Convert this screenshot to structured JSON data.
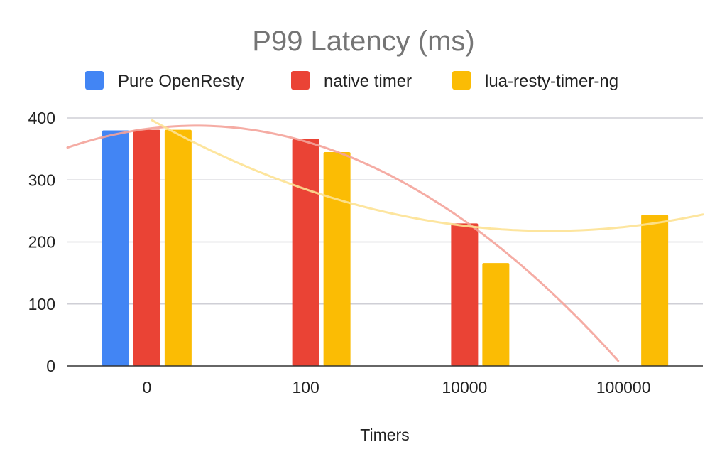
{
  "chart_data": {
    "type": "bar",
    "title": "P99 Latency (ms)",
    "xlabel": "Timers",
    "ylabel": "",
    "categories": [
      "0",
      "100",
      "10000",
      "100000"
    ],
    "ylim": [
      0,
      400
    ],
    "yticks": [
      "0",
      "100",
      "200",
      "300",
      "400"
    ],
    "grid": true,
    "legend_position": "top",
    "series": [
      {
        "name": "Pure OpenResty",
        "color": "#4285f4",
        "values": [
          380,
          null,
          null,
          null
        ]
      },
      {
        "name": "native timer",
        "color": "#ea4335",
        "values": [
          381,
          366,
          230,
          0
        ]
      },
      {
        "name": "lua-resty-timer-ng",
        "color": "#fbbc04",
        "values": [
          381,
          345,
          166,
          244
        ]
      }
    ],
    "trendlines": [
      {
        "series": "native timer",
        "color": "#f4a39a",
        "type": "polynomial"
      },
      {
        "series": "lua-resty-timer-ng",
        "color": "#fde293",
        "type": "polynomial"
      }
    ]
  }
}
